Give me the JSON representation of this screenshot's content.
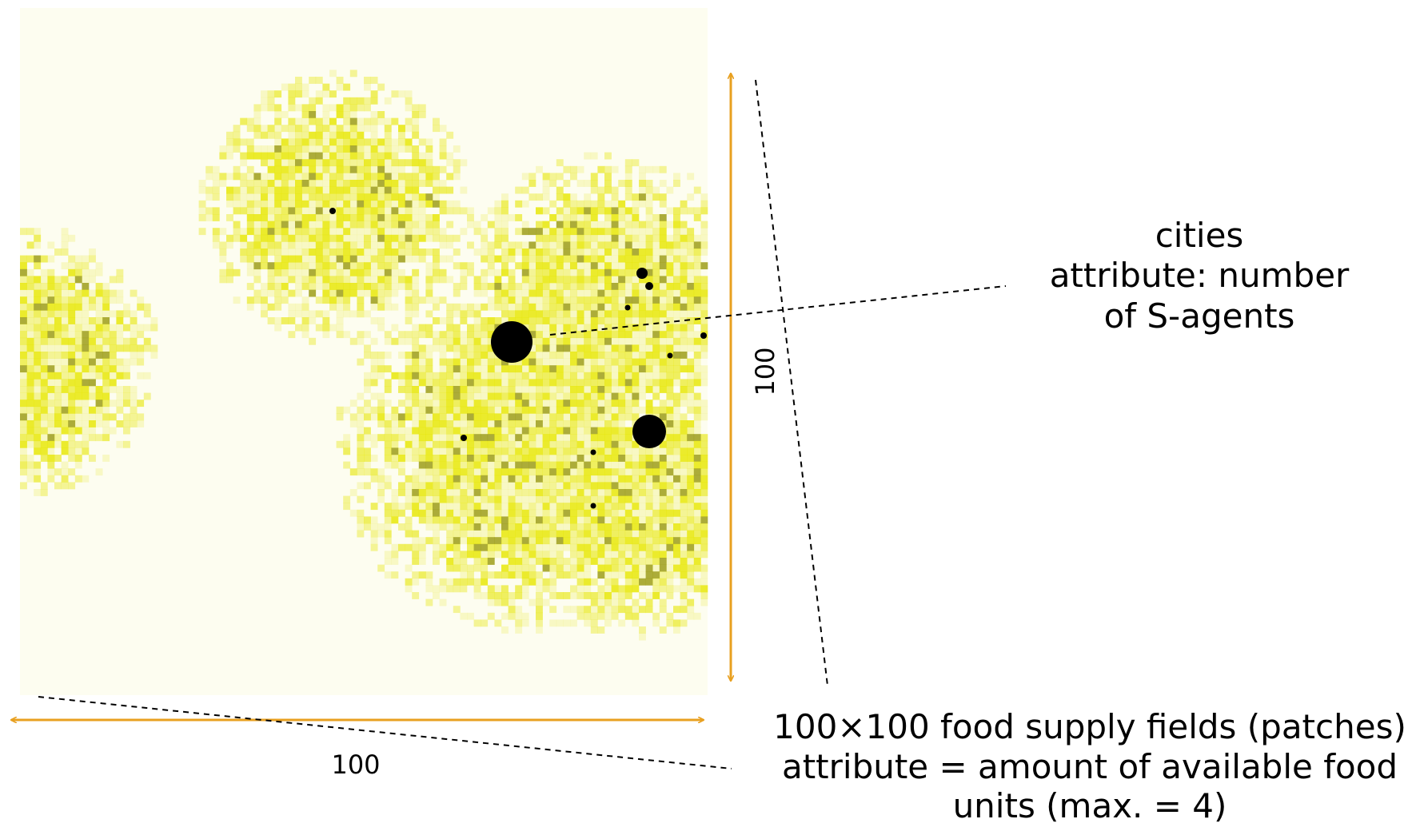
{
  "labels": {
    "cities": {
      "line1": "cities",
      "line2": "attribute: number",
      "line3": "of S-agents"
    },
    "patches": {
      "line1": "100×100 food supply fields (patches)",
      "line2": "attribute =  amount of available food",
      "line3": "units (max. = 4)"
    },
    "width_dim": "100",
    "height_dim": "100"
  },
  "colors": {
    "patch_base": "#fdfdf0",
    "patch_food": "#e6e600",
    "dimension_arrow": "#e8a020",
    "city": "#000000",
    "leader_line": "#000000"
  }
}
